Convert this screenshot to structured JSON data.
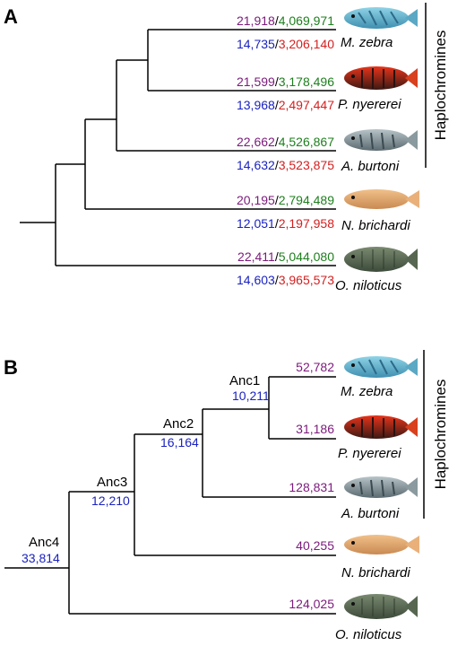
{
  "panel_a": {
    "label": "A",
    "clade_label": "Haplochromines",
    "tips": [
      {
        "species": "M. zebra",
        "top_a": "21,918",
        "top_b": "4,069,971",
        "bot_a": "14,735",
        "bot_b": "3,206,140"
      },
      {
        "species": "P. nyererei",
        "top_a": "21,599",
        "top_b": "3,178,496",
        "bot_a": "13,968",
        "bot_b": "2,497,447"
      },
      {
        "species": "A. burtoni",
        "top_a": "22,662",
        "top_b": "4,526,867",
        "bot_a": "14,632",
        "bot_b": "3,523,875"
      },
      {
        "species": "N. brichardi",
        "top_a": "20,195",
        "top_b": "2,794,489",
        "bot_a": "12,051",
        "bot_b": "2,197,958"
      },
      {
        "species": "O. niloticus",
        "top_a": "22,411",
        "top_b": "5,044,080",
        "bot_a": "14,603",
        "bot_b": "3,965,573"
      }
    ]
  },
  "panel_b": {
    "label": "B",
    "clade_label": "Haplochromines",
    "tips": [
      {
        "species": "M. zebra",
        "value": "52,782"
      },
      {
        "species": "P. nyererei",
        "value": "31,186"
      },
      {
        "species": "A. burtoni",
        "value": "128,831"
      },
      {
        "species": "N. brichardi",
        "value": "40,255"
      },
      {
        "species": "O. niloticus",
        "value": "124,025"
      }
    ],
    "nodes": [
      {
        "name": "Anc1",
        "value": "10,211"
      },
      {
        "name": "Anc2",
        "value": "16,164"
      },
      {
        "name": "Anc3",
        "value": "12,210"
      },
      {
        "name": "Anc4",
        "value": "33,814"
      }
    ]
  },
  "colors": {
    "purple": "#7b1a7b",
    "green": "#1e7f1e",
    "blue": "#1a22c0",
    "red": "#d42020"
  }
}
